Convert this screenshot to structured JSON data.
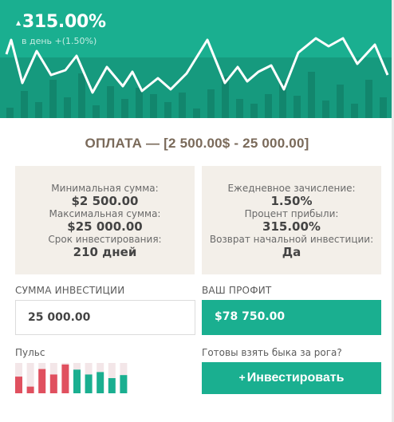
{
  "hero": {
    "percent": "315.00%",
    "trend_icon": "triangle-up-icon",
    "subtitle": "в день +(1.50%)",
    "colors": {
      "bg": "#1aaf90",
      "band": "#169a7e",
      "bar": "#12866d",
      "line": "#ffffff"
    }
  },
  "title": "ОПЛАТА — [2 500.00$ - 25 000.00]",
  "left_card": {
    "min_label": "Минимальная сумма:",
    "min_value": "$2 500.00",
    "max_label": "Максимальная сумма:",
    "max_value": "$25 000.00",
    "term_label": "Срок инвестирования:",
    "term_value": "210 дней"
  },
  "right_card": {
    "daily_label": "Ежедневное зачисление:",
    "daily_value": "1.50%",
    "profit_pct_label": "Процент прибыли:",
    "profit_pct_value": "315.00%",
    "return_label": "Возврат начальной инвестиции:",
    "return_value": "Да"
  },
  "investment": {
    "label": "СУММА ИНВЕСТИЦИИ",
    "value": "25 000.00"
  },
  "profit": {
    "label": "ВАШ ПРОФИТ",
    "value": "$78 750.00"
  },
  "pulse": {
    "label": "Пульс",
    "colors": {
      "red": "#e0505f",
      "green": "#1aaf90",
      "track": "#f3e6e8"
    },
    "bars": [
      {
        "level": 0.55,
        "color": "red"
      },
      {
        "level": 0.22,
        "color": "red"
      },
      {
        "level": 0.8,
        "color": "red"
      },
      {
        "level": 0.62,
        "color": "red"
      },
      {
        "level": 0.95,
        "color": "red"
      },
      {
        "level": 0.78,
        "color": "green"
      },
      {
        "level": 0.62,
        "color": "green"
      },
      {
        "level": 0.7,
        "color": "green"
      },
      {
        "level": 0.5,
        "color": "green"
      },
      {
        "level": 0.6,
        "color": "green"
      }
    ]
  },
  "cta": {
    "question": "Готовы взять быка за рога?",
    "button_label": "Инвестировать",
    "button_icon": "plus-icon"
  }
}
